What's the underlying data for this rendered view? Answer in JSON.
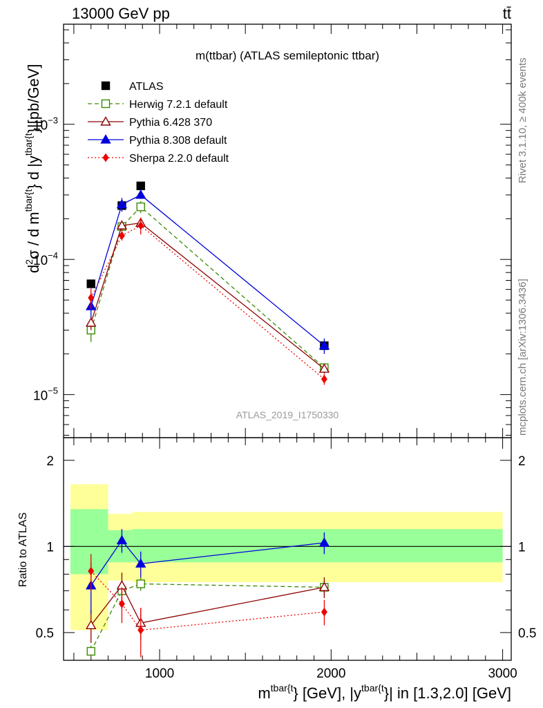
{
  "header": {
    "left": "13000 GeV pp",
    "right": "tt̄"
  },
  "side_labels": {
    "rivet": "Rivet 3.1.10, ≥ 400k events",
    "mcplots": "mcplots.cern.ch [arXiv:1306.3436]"
  },
  "chart_data": [
    {
      "type": "scatter",
      "panel": "main",
      "title": "m(ttbar) (ATLAS semileptonic ttbar)",
      "watermark": "ATLAS_2019_I1750330",
      "ylabel": "d²σ / d m^{tbar{t}} d |y^{tbar{t}}|[pb/GeV]",
      "ylabel_parts": {
        "lead": "d",
        "sup2": "2",
        "mid": "σ / d m",
        "sup_tbar1": "tbar{t",
        "mid2": "} d |y",
        "sup_tbar2": "tbar{t",
        "tail": "}|[pb/GeV]"
      },
      "yscale": "log",
      "ylim": [
        4.8e-06,
        0.0055
      ],
      "xlim": [
        440,
        3050
      ],
      "y_ticks": [
        {
          "value": 1e-05,
          "base": "10",
          "exp": "−5"
        },
        {
          "value": 0.0001,
          "base": "10",
          "exp": "−4"
        },
        {
          "value": 0.001,
          "base": "10",
          "exp": "−3"
        }
      ],
      "legend_position": "top-left",
      "series": [
        {
          "name": "ATLAS",
          "color": "#000000",
          "marker": "square-filled",
          "line": "none",
          "x": [
            600,
            780,
            890,
            1960
          ],
          "y": [
            6.6e-05,
            0.00025,
            0.00035,
            2.3e-05
          ]
        },
        {
          "name": "Herwig 7.2.1 default",
          "color": "#3a8a00",
          "marker": "square-open",
          "line": "dashed",
          "x": [
            600,
            780,
            890,
            1960
          ],
          "y": [
            3e-05,
            0.000175,
            0.000245,
            1.58e-05
          ],
          "yerr": [
            5.5e-06,
            1e-05,
            2.5e-05,
            1.2e-06
          ]
        },
        {
          "name": "Pythia 6.428 370",
          "color": "#8b0000",
          "marker": "triangle-open",
          "line": "solid",
          "x": [
            600,
            780,
            890,
            1960
          ],
          "y": [
            3.4e-05,
            0.000178,
            0.000186,
            1.55e-05
          ],
          "yerr": [
            4e-06,
            1.4e-05,
            1.8e-05,
            1.2e-06
          ]
        },
        {
          "name": "Pythia 8.308 default",
          "color": "#0000dd",
          "marker": "triangle-filled",
          "line": "solid",
          "x": [
            600,
            780,
            890,
            1960
          ],
          "y": [
            4.5e-05,
            0.000255,
            0.0003,
            2.3e-05
          ],
          "yerr": [
            8e-06,
            3e-05,
            2e-05,
            3e-06
          ]
        },
        {
          "name": "Sherpa 2.2.0 default",
          "color": "#ee0000",
          "marker": "diamond-filled",
          "line": "dotted",
          "x": [
            600,
            780,
            890,
            1960
          ],
          "y": [
            5.2e-05,
            0.00015,
            0.000178,
            1.3e-05
          ],
          "yerr": [
            9e-06,
            1.2e-05,
            2.5e-05,
            1.2e-06
          ]
        }
      ]
    },
    {
      "type": "scatter",
      "panel": "ratio",
      "ylabel": "Ratio to ATLAS",
      "xlabel": "m^{tbar{t}} [GeV], |y^{tbar{t}}| in [1.3,2.0] [GeV]",
      "xlabel_parts": {
        "lead": "m",
        "sup1": "tbar{t",
        "mid": "} [GeV], |y",
        "sup2": "tbar{t",
        "tail": "}| in [1.3,2.0] [GeV]"
      },
      "yscale": "log",
      "ylim": [
        0.4,
        2.4
      ],
      "xlim": [
        440,
        3050
      ],
      "x_ticks": [
        1000,
        2000,
        3000
      ],
      "y_ticks": [
        0.5,
        1,
        2
      ],
      "reference_line": 1,
      "uncertainty_bands": [
        {
          "x0": 480,
          "x1": 700,
          "inner": [
            0.8,
            1.35
          ],
          "outer": [
            0.51,
            1.65
          ]
        },
        {
          "x0": 700,
          "x1": 840,
          "inner": [
            0.88,
            1.14
          ],
          "outer": [
            0.76,
            1.3
          ]
        },
        {
          "x0": 840,
          "x1": 3000,
          "inner": [
            0.88,
            1.15
          ],
          "outer": [
            0.75,
            1.32
          ]
        }
      ],
      "band_colors": {
        "inner": "#99ff99",
        "outer": "#ffff99"
      },
      "series": [
        {
          "name": "Herwig 7.2.1 default",
          "color": "#3a8a00",
          "marker": "square-open",
          "line": "dashed",
          "x": [
            600,
            780,
            890,
            1960
          ],
          "y": [
            0.43,
            0.7,
            0.74,
            0.72
          ],
          "yerr": [
            0.02,
            0.05,
            0.04,
            0.04
          ]
        },
        {
          "name": "Pythia 6.428 370",
          "color": "#8b0000",
          "marker": "triangle-open",
          "line": "solid",
          "x": [
            600,
            780,
            890,
            1960
          ],
          "y": [
            0.53,
            0.73,
            0.54,
            0.72
          ],
          "yerr": [
            0.07,
            0.08,
            0.07,
            0.06
          ]
        },
        {
          "name": "Pythia 8.308 default",
          "color": "#0000dd",
          "marker": "triangle-filled",
          "line": "solid",
          "x": [
            600,
            780,
            890,
            1960
          ],
          "y": [
            0.73,
            1.05,
            0.87,
            1.03
          ],
          "yerr": [
            0.15,
            0.1,
            0.09,
            0.09
          ]
        },
        {
          "name": "Sherpa 2.2.0 default",
          "color": "#ee0000",
          "marker": "diamond-filled",
          "line": "dotted",
          "x": [
            600,
            780,
            890,
            1960
          ],
          "y": [
            0.82,
            0.63,
            0.51,
            0.59
          ],
          "yerr": [
            0.12,
            0.09,
            0.1,
            0.06
          ]
        }
      ]
    }
  ]
}
